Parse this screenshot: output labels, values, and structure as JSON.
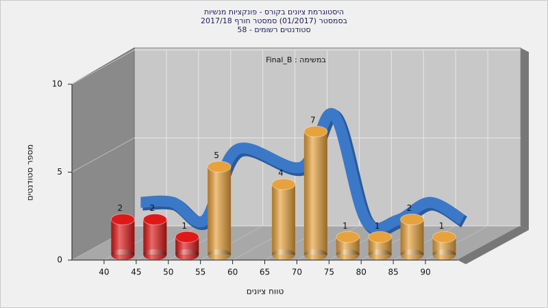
{
  "chart_data": {
    "type": "histogram",
    "title_lines": [
      "היסטוגרמת ציונים בקורס - פונקציות מנשיות",
      "בסמסטר  (01/2017)  סמסטר חורף 2017/18",
      "סטודנטים רשומים - 58"
    ],
    "annotation": "Final_B : במשימה",
    "x_label": "טווח ציונים",
    "y_label": "מספר סטודנטים",
    "bins": [
      40,
      45,
      50,
      55,
      60,
      65,
      70,
      75,
      80,
      85,
      90,
      95
    ],
    "values": [
      2,
      2,
      1,
      5,
      null,
      4,
      7,
      1,
      1,
      2,
      1
    ],
    "colors": [
      "#e01818",
      "#e01818",
      "#e01818",
      "#e8a23c",
      "#e8a23c",
      "#e8a23c",
      "#e8a23c",
      "#e8a23c",
      "#e8a23c",
      "#e8a23c",
      "#e8a23c"
    ],
    "curve_color": "#3b78c8",
    "xlim": [
      35,
      95
    ],
    "xticks": [
      40,
      45,
      50,
      55,
      60,
      65,
      70,
      75,
      80,
      85,
      90
    ],
    "ylim": [
      0,
      10
    ],
    "yticks": [
      0,
      5,
      10
    ],
    "grid": true
  }
}
